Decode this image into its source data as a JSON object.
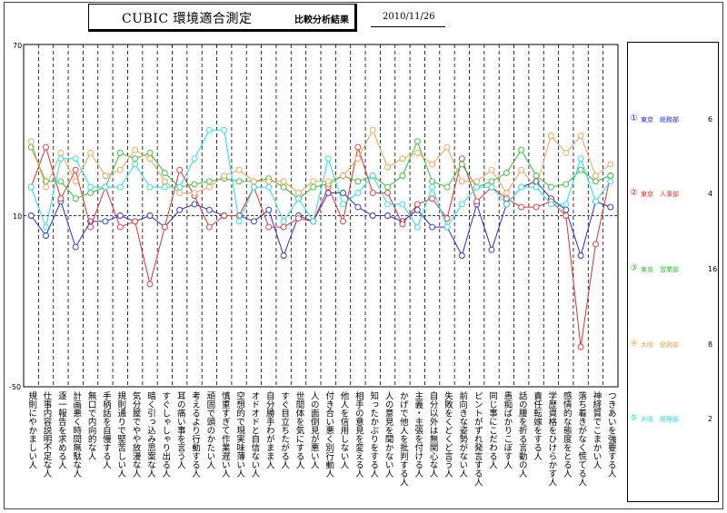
{
  "header": {
    "title": "CUBIC 環境適合測定",
    "subtitle": "比較分析結果",
    "date": "2010/11/26"
  },
  "chart_data": {
    "type": "line",
    "ylim": [
      -50,
      70
    ],
    "y_ticks": [
      "70",
      "10",
      "-50"
    ],
    "reference_line": 10,
    "categories": [
      "規則にやかましい人",
      "仕事内容説明不足な人",
      "逐一報告を求める人",
      "計画悪く時間無駄な人",
      "無口で内向的な人",
      "手柄話を自慢する人",
      "規則通りで堅苦しい人",
      "気分屋でやや放漫な人",
      "暗く引っ込み思案な人",
      "すぐしゃしゃり出る人",
      "耳の痛い事を言う人",
      "考えるより行動する人",
      "頑固で頭のかたい人",
      "慎重すぎて作業遅い人",
      "空想的で現実味薄い人",
      "オドオドと自信ない人",
      "自分勝手わがまま人",
      "すぐ目立ちたがる人",
      "世間体を気にする人",
      "人の面倒見が悪い人",
      "付き合い悪く別行動人",
      "他人を信用しない人",
      "相手の意見を変える人",
      "知ったかぶりをする人",
      "人の意見を聞かない人",
      "かげで他人を批判する人",
      "主義・主張を付ける人",
      "自分以外は無関心な人",
      "失敗をくどくど言う人",
      "前向きな姿勢がない人",
      "ピントがずれ発言する人",
      "同じ事にこだわる人",
      "愚痴ばかりこぼす人",
      "話の腰を折る言動の人",
      "責任転嫁をする人",
      "学歴資格をひけらかす人",
      "感情的な態度をとる人",
      "落ち着きがなく慌てる人",
      "神経質でこまかい人",
      "つきあいを強要する人"
    ],
    "series": [
      {
        "name": "東京　総務部",
        "marker": "①",
        "count": "6",
        "color": "#2a2ad6",
        "values": [
          10,
          3,
          15,
          -1,
          8,
          8,
          10,
          8,
          10,
          6,
          12,
          14,
          12,
          10,
          10,
          8,
          12,
          -4,
          10,
          8,
          18,
          18,
          13,
          10,
          10,
          8,
          12,
          6,
          6,
          -4,
          14,
          -2,
          14,
          20,
          22,
          16,
          12,
          -4,
          15,
          13
        ]
      },
      {
        "name": "東京　人事部",
        "marker": "②",
        "count": "4",
        "color": "#e03030",
        "values": [
          20,
          34,
          16,
          26,
          6,
          20,
          6,
          8,
          -14,
          6,
          26,
          17,
          6,
          10,
          10,
          20,
          6,
          6,
          9,
          8,
          20,
          8,
          34,
          18,
          18,
          7,
          14,
          16,
          9,
          30,
          15,
          20,
          16,
          13,
          13,
          15,
          10,
          -36,
          0,
          24
        ]
      },
      {
        "name": "東京　営業部",
        "marker": "③",
        "count": "16",
        "color": "#30c030",
        "values": [
          34,
          22,
          22,
          16,
          18,
          20,
          32,
          30,
          32,
          25,
          20,
          21,
          22,
          23,
          22,
          22,
          23,
          20,
          16,
          20,
          21,
          24,
          22,
          24,
          20,
          24,
          36,
          22,
          20,
          28,
          20,
          22,
          25,
          33,
          24,
          20,
          21,
          26,
          22,
          24
        ]
      },
      {
        "name": "大阪　総務部",
        "marker": "④",
        "count": "8",
        "color": "#f0a050",
        "values": [
          36,
          20,
          32,
          22,
          32,
          24,
          26,
          33,
          30,
          22,
          18,
          18,
          20,
          24,
          26,
          22,
          22,
          22,
          18,
          22,
          22,
          24,
          30,
          40,
          27,
          30,
          32,
          28,
          34,
          22,
          22,
          26,
          18,
          26,
          20,
          38,
          32,
          38,
          24,
          28
        ]
      },
      {
        "name": "大阪　経理部",
        "marker": "⑤",
        "count": "2",
        "color": "#20e0e0",
        "values": [
          20,
          6,
          30,
          30,
          20,
          20,
          20,
          28,
          20,
          20,
          20,
          30,
          40,
          40,
          8,
          20,
          20,
          8,
          16,
          8,
          30,
          14,
          18,
          24,
          14,
          14,
          6,
          20,
          6,
          14,
          20,
          20,
          14,
          20,
          20,
          14,
          14,
          30,
          15,
          22
        ]
      }
    ]
  }
}
